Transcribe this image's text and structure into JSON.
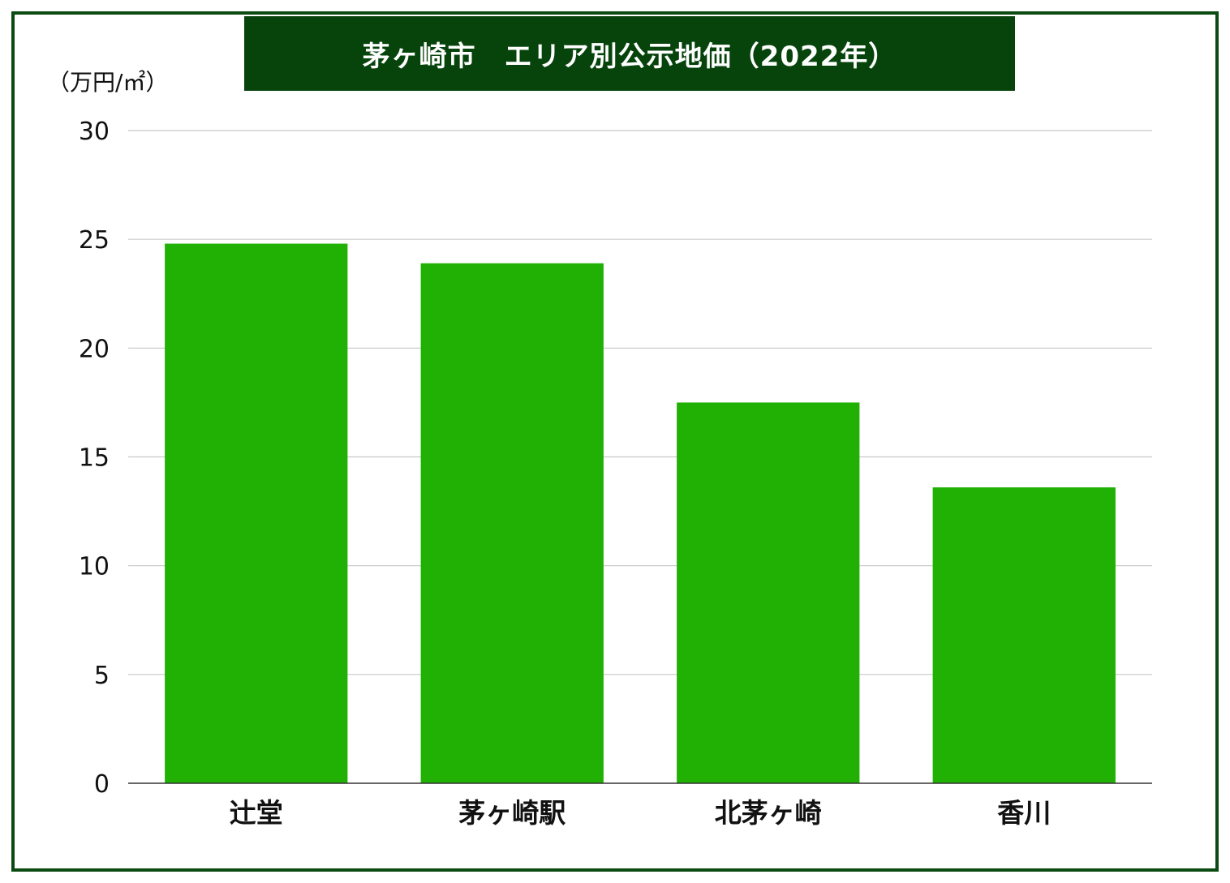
{
  "colors": {
    "frame": "#0b4a10",
    "title_bg": "#07440c",
    "title_text": "#ffffff",
    "bar": "#21b004",
    "grid": "#c8c8c8",
    "axis": "#333333"
  },
  "chart_data": {
    "type": "bar",
    "title": "茅ヶ崎市　エリア別公示地価（2022年）",
    "ylabel": "（万円/㎡）",
    "xlabel": "",
    "categories": [
      "辻堂",
      "茅ヶ崎駅",
      "北茅ヶ崎",
      "香川"
    ],
    "values": [
      24.8,
      23.9,
      17.5,
      13.6
    ],
    "ylim": [
      0,
      30
    ],
    "yticks": [
      0,
      5,
      10,
      15,
      20,
      25,
      30
    ],
    "grid": true,
    "legend": "none"
  }
}
